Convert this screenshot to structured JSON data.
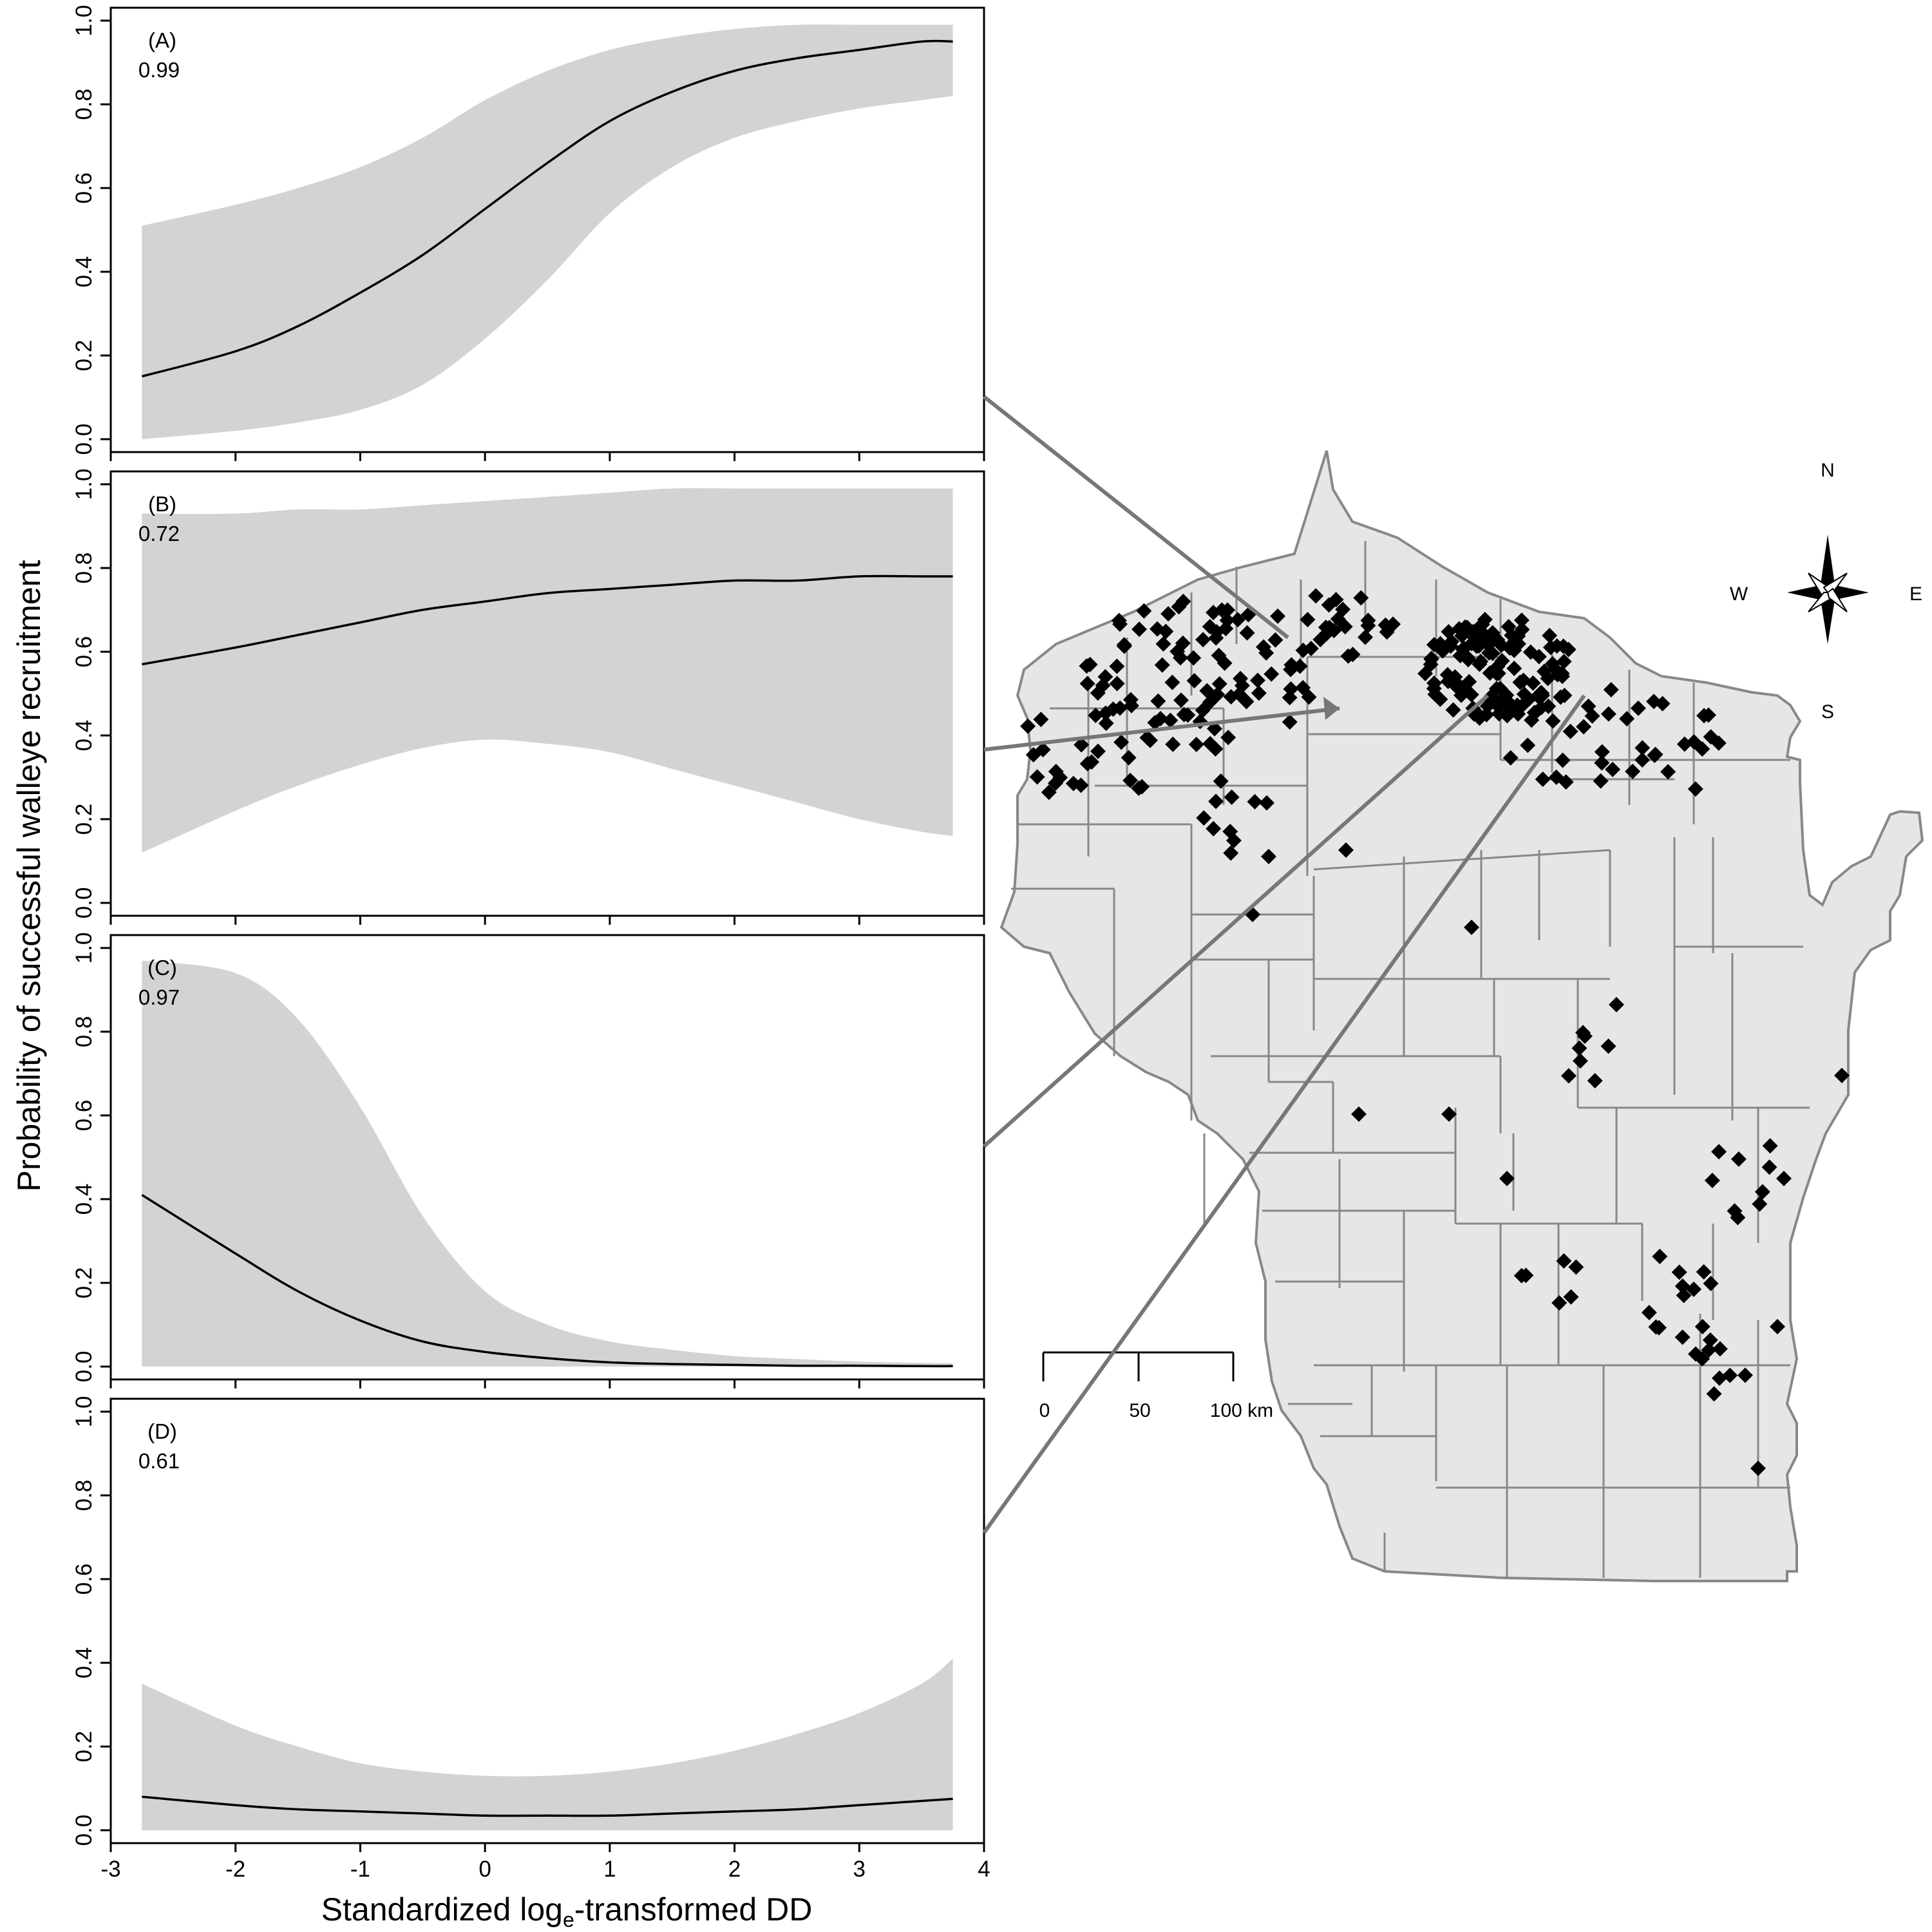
{
  "figure": {
    "ylabel": "Probability of successful walleye recruitment",
    "xlabel_prefix": "Standardized log",
    "xlabel_subscript": "e",
    "xlabel_suffix": "-transformed DD"
  },
  "chart_data": [
    {
      "type": "line",
      "panel": "(A)",
      "value_label": "0.99",
      "x": [
        -2.75,
        -2.0,
        -1.5,
        -1.0,
        -0.5,
        0.0,
        0.5,
        1.0,
        1.5,
        2.0,
        2.5,
        3.0,
        3.5,
        3.75
      ],
      "y": [
        0.15,
        0.21,
        0.27,
        0.35,
        0.44,
        0.55,
        0.66,
        0.76,
        0.83,
        0.88,
        0.91,
        0.93,
        0.95,
        0.95
      ],
      "lower": [
        0.0,
        0.02,
        0.04,
        0.07,
        0.13,
        0.24,
        0.38,
        0.54,
        0.65,
        0.72,
        0.76,
        0.79,
        0.81,
        0.82
      ],
      "upper": [
        0.51,
        0.56,
        0.6,
        0.65,
        0.72,
        0.81,
        0.88,
        0.93,
        0.96,
        0.98,
        0.99,
        0.99,
        0.99,
        0.99
      ],
      "xlim": [
        -3,
        4
      ],
      "ylim": [
        0,
        1
      ],
      "yticks": [
        "0.0",
        "0.2",
        "0.4",
        "0.6",
        "0.8",
        "1.0"
      ]
    },
    {
      "type": "line",
      "panel": "(B)",
      "value_label": "0.72",
      "x": [
        -2.75,
        -2.0,
        -1.5,
        -1.0,
        -0.5,
        0.0,
        0.5,
        1.0,
        1.5,
        2.0,
        2.5,
        3.0,
        3.5,
        3.75
      ],
      "y": [
        0.57,
        0.61,
        0.64,
        0.67,
        0.7,
        0.72,
        0.74,
        0.75,
        0.76,
        0.77,
        0.77,
        0.78,
        0.78,
        0.78
      ],
      "lower": [
        0.12,
        0.22,
        0.28,
        0.33,
        0.37,
        0.39,
        0.38,
        0.36,
        0.32,
        0.28,
        0.24,
        0.2,
        0.17,
        0.16
      ],
      "upper": [
        0.93,
        0.93,
        0.94,
        0.94,
        0.95,
        0.96,
        0.97,
        0.98,
        0.99,
        0.99,
        0.99,
        0.99,
        0.99,
        0.99
      ],
      "xlim": [
        -3,
        4
      ],
      "ylim": [
        0,
        1
      ],
      "yticks": [
        "0.0",
        "0.2",
        "0.4",
        "0.6",
        "0.8",
        "1.0"
      ]
    },
    {
      "type": "line",
      "panel": "(C)",
      "value_label": "0.97",
      "x": [
        -2.75,
        -2.0,
        -1.5,
        -1.0,
        -0.5,
        0.0,
        0.5,
        1.0,
        1.5,
        2.0,
        2.5,
        3.0,
        3.5,
        3.75
      ],
      "y": [
        0.41,
        0.27,
        0.18,
        0.11,
        0.06,
        0.035,
        0.02,
        0.01,
        0.006,
        0.004,
        0.002,
        0.002,
        0.001,
        0.001
      ],
      "lower": [
        0,
        0,
        0,
        0,
        0,
        0,
        0,
        0,
        0,
        0,
        0,
        0,
        0,
        0
      ],
      "upper": [
        0.97,
        0.94,
        0.83,
        0.62,
        0.36,
        0.18,
        0.1,
        0.06,
        0.04,
        0.025,
        0.018,
        0.012,
        0.009,
        0.008
      ],
      "xlim": [
        -3,
        4
      ],
      "ylim": [
        0,
        1
      ],
      "yticks": [
        "0.0",
        "0.2",
        "0.4",
        "0.6",
        "0.8",
        "1.0"
      ]
    },
    {
      "type": "line",
      "panel": "(D)",
      "value_label": "0.61",
      "x": [
        -2.75,
        -2.0,
        -1.5,
        -1.0,
        -0.5,
        0.0,
        0.5,
        1.0,
        1.5,
        2.0,
        2.5,
        3.0,
        3.5,
        3.75
      ],
      "y": [
        0.08,
        0.06,
        0.05,
        0.045,
        0.04,
        0.035,
        0.035,
        0.035,
        0.04,
        0.045,
        0.05,
        0.06,
        0.07,
        0.075
      ],
      "lower": [
        0,
        0,
        0,
        0,
        0,
        0,
        0,
        0,
        0,
        0,
        0,
        0,
        0,
        0
      ],
      "upper": [
        0.35,
        0.25,
        0.2,
        0.16,
        0.14,
        0.13,
        0.13,
        0.14,
        0.16,
        0.19,
        0.23,
        0.28,
        0.35,
        0.41
      ],
      "xlim": [
        -3,
        4
      ],
      "ylim": [
        0,
        1
      ],
      "xticks": [
        "-3",
        "-2",
        "-1",
        "0",
        "1",
        "2",
        "3",
        "4"
      ],
      "yticks": [
        "0.0",
        "0.2",
        "0.4",
        "0.6",
        "0.8",
        "1.0"
      ]
    }
  ],
  "map": {
    "compass": {
      "n": "N",
      "s": "S",
      "e": "E",
      "w": "W"
    },
    "scale_bar": {
      "labels": [
        "0",
        "50",
        "100 km"
      ]
    },
    "colors": {
      "land": "#e6e6e6",
      "county_border": "#888888",
      "point": "#000000",
      "band": "#d3d3d3",
      "connector": "#777777"
    }
  }
}
